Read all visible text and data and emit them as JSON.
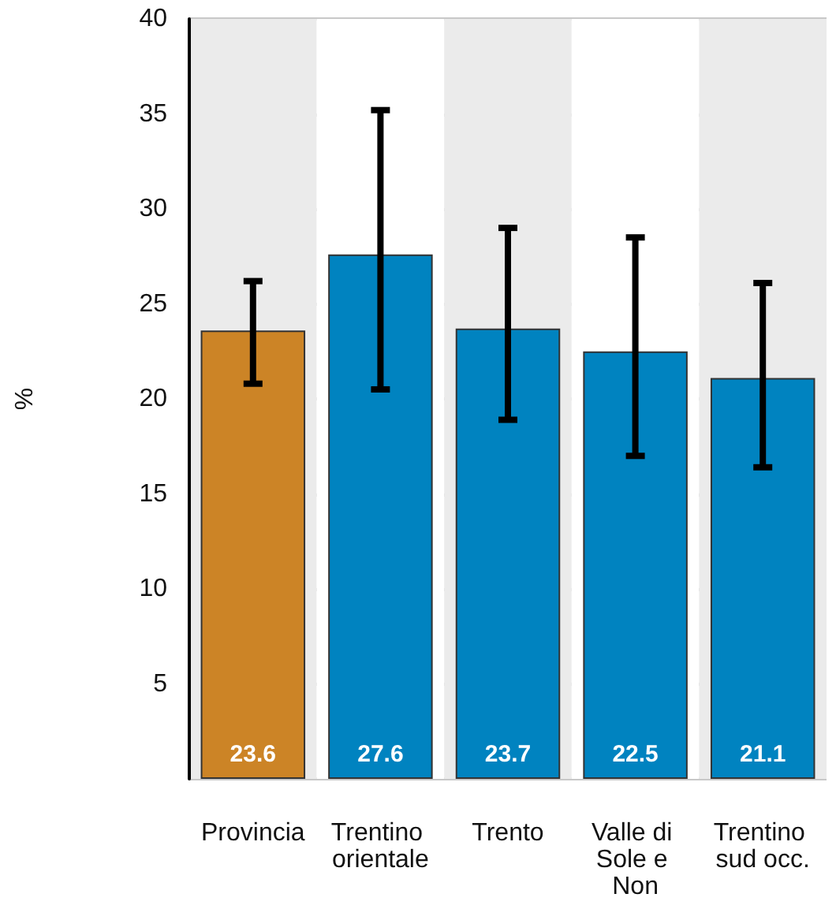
{
  "chart_data": {
    "type": "bar",
    "ylabel": "%",
    "categories": [
      "Provincia",
      "Trentino orientale",
      "Trento",
      "Valle di Sole e Non",
      "Trentino sud occ."
    ],
    "values": [
      23.6,
      27.6,
      23.7,
      22.5,
      21.1
    ],
    "colors": [
      "#cc8426",
      "#0083c0",
      "#0083c0",
      "#0083c0",
      "#0083c0"
    ],
    "errors": [
      [
        20.8,
        26.2
      ],
      [
        20.5,
        35.2
      ],
      [
        18.9,
        29.0
      ],
      [
        17.0,
        28.5
      ],
      [
        16.4,
        26.1
      ]
    ],
    "data_labels": true,
    "ylim": [
      0,
      40
    ],
    "yticks": [
      {
        "value": 0,
        "label": null
      },
      5,
      10,
      15,
      20,
      25,
      30,
      35,
      40
    ],
    "grid": "y"
  }
}
